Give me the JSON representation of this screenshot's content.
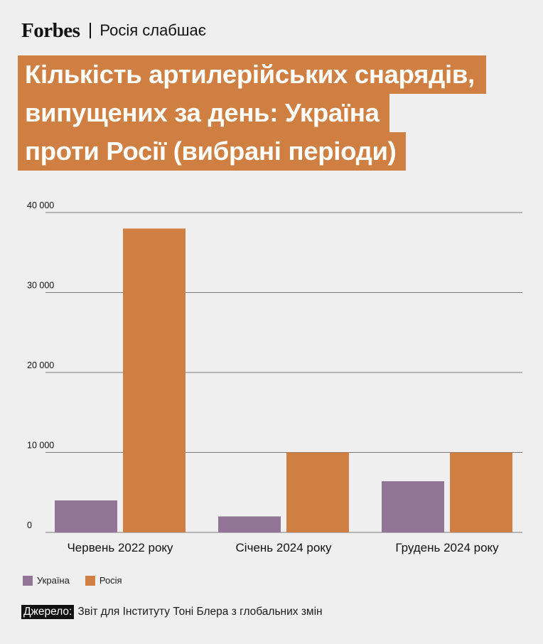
{
  "header": {
    "brand": "Forbes",
    "section": "Росія слабшає"
  },
  "title_lines": [
    "Кількість артилерійських снарядів,",
    "випущених за день: Україна",
    "проти Росії (вибрані періоди)"
  ],
  "colors": {
    "accent": "#cf7f42",
    "ukraine": "#927497",
    "russia": "#cf7f42",
    "background": "#efefef"
  },
  "chart_data": {
    "type": "bar",
    "categories": [
      "Червень 2022 року",
      "Січень 2024 року",
      "Грудень 2024 року"
    ],
    "series": [
      {
        "name": "Україна",
        "values": [
          4000,
          2000,
          6400
        ]
      },
      {
        "name": "Росія",
        "values": [
          38000,
          10000,
          10000
        ]
      }
    ],
    "ylim": [
      0,
      40000
    ],
    "yticks": [
      0,
      10000,
      20000,
      30000,
      40000
    ],
    "ytick_labels": [
      "0",
      "10 000",
      "20 000",
      "30 000",
      "40 000"
    ],
    "grid": true,
    "legend_position": "bottom-left"
  },
  "legend": [
    {
      "label": "Україна",
      "color_key": "ukraine"
    },
    {
      "label": "Росія",
      "color_key": "russia"
    }
  ],
  "source": {
    "label": "Джерело:",
    "text": "Звіт для Інституту Тоні Блера з глобальних змін"
  }
}
